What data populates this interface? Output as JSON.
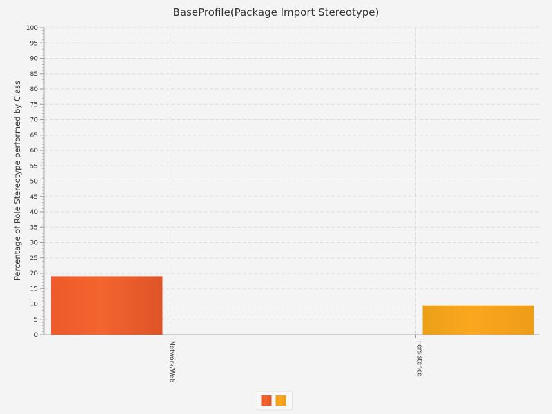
{
  "chart_data": {
    "type": "bar",
    "title": "BaseProfile(Package Import Stereotype)",
    "xlabel": "",
    "ylabel": "Percentage of Role Stereotype performed by Class",
    "categories": [
      "Network/Web",
      "Persistence"
    ],
    "series": [
      {
        "values": [
          19,
          null
        ],
        "color": "#f05f2c"
      },
      {
        "values": [
          null,
          9.5
        ],
        "color": "#f9a21b"
      }
    ],
    "ylim": [
      0,
      100
    ],
    "ytick_step": 5,
    "grid": true,
    "legend": "bottom-center"
  }
}
